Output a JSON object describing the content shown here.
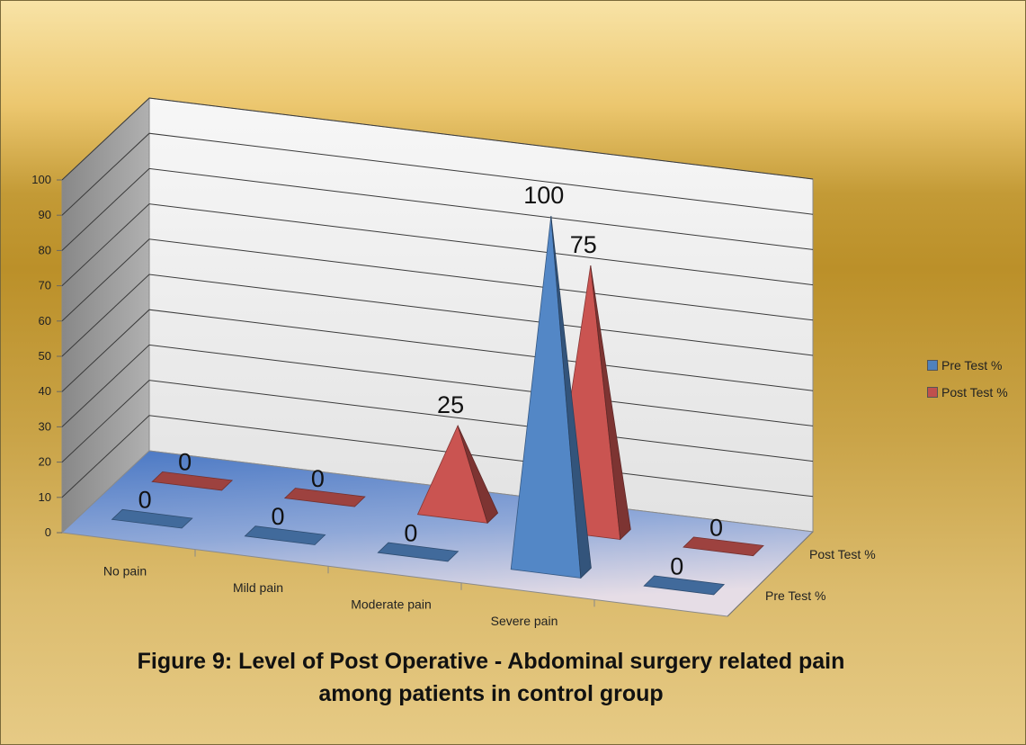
{
  "caption_line1": "Figure 9: Level of Post Operative - Abdominal surgery related pain",
  "caption_line2": "among patients in control group",
  "chart_data": {
    "type": "bar",
    "shape": "3d-pyramid",
    "categories": [
      "No pain",
      "Mild pain",
      "Moderate pain",
      "Severe pain",
      ""
    ],
    "series": [
      {
        "name": "Pre Test %",
        "values": [
          0,
          0,
          0,
          100,
          0
        ],
        "color": "#4f81bd"
      },
      {
        "name": "Post Test %",
        "values": [
          0,
          0,
          25,
          75,
          0
        ],
        "color": "#c0504d"
      }
    ],
    "depth_labels": [
      "Pre Test %",
      "Post Test %"
    ],
    "y_ticks": [
      "0",
      "10",
      "20",
      "30",
      "40",
      "50",
      "60",
      "70",
      "80",
      "90",
      "100"
    ],
    "ylim": [
      0,
      100
    ],
    "grid": true,
    "legend": "right"
  }
}
